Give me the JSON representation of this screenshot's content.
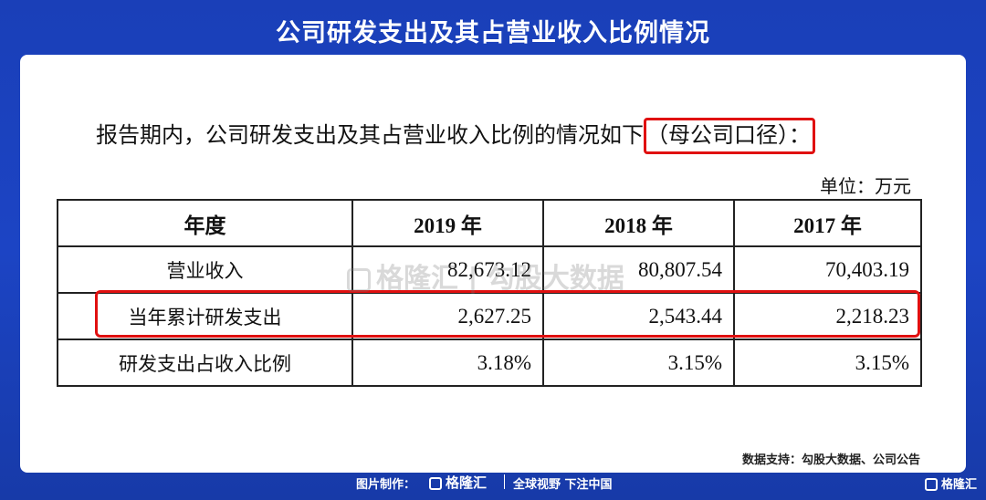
{
  "title": "公司研发支出及其占营业收入比例情况",
  "intro": {
    "text": "报告期内，公司研发支出及其占营业收入比例的情况如下",
    "highlight": "（母公司口径）："
  },
  "unit": "单位：万元",
  "table": {
    "headers": [
      "年度",
      "2019 年",
      "2018 年",
      "2017 年"
    ],
    "rows": [
      {
        "label": "营业收入",
        "values": [
          "82,673.12",
          "80,807.54",
          "70,403.19"
        ]
      },
      {
        "label": "当年累计研发支出",
        "values": [
          "2,627.25",
          "2,543.44",
          "2,218.23"
        ]
      },
      {
        "label": "研发支出占收入比例",
        "values": [
          "3.18%",
          "3.15%",
          "3.15%"
        ]
      }
    ]
  },
  "watermark": "格隆汇 | 勾股大数据",
  "source": "数据支持：勾股大数据、公司公告",
  "footer": {
    "credit": "图片制作：",
    "brand": "格隆汇",
    "slogan": "全球视野 下注中国",
    "corner": "格隆汇"
  },
  "colors": {
    "background": "#1c44c4",
    "highlight": "#e01010"
  }
}
